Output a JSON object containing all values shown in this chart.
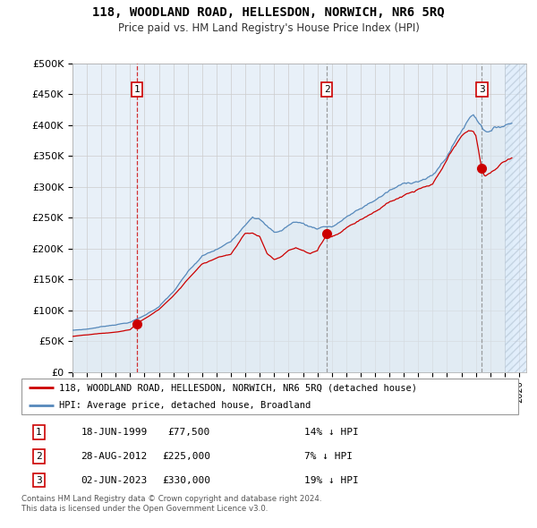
{
  "title": "118, WOODLAND ROAD, HELLESDON, NORWICH, NR6 5RQ",
  "subtitle": "Price paid vs. HM Land Registry's House Price Index (HPI)",
  "legend_label_red": "118, WOODLAND ROAD, HELLESDON, NORWICH, NR6 5RQ (detached house)",
  "legend_label_blue": "HPI: Average price, detached house, Broadland",
  "sale_years": [
    1999.46,
    2012.65,
    2023.42
  ],
  "sale_prices": [
    77500,
    225000,
    330000
  ],
  "sale_labels": [
    "1",
    "2",
    "3"
  ],
  "sale_annotations": [
    {
      "label": "1",
      "date": "18-JUN-1999",
      "price": "£77,500",
      "hpi": "14% ↓ HPI"
    },
    {
      "label": "2",
      "date": "28-AUG-2012",
      "price": "£225,000",
      "hpi": "7% ↓ HPI"
    },
    {
      "label": "3",
      "date": "02-JUN-2023",
      "price": "£330,000",
      "hpi": "19% ↓ HPI"
    }
  ],
  "footer": "Contains HM Land Registry data © Crown copyright and database right 2024.\nThis data is licensed under the Open Government Licence v3.0.",
  "ylim": [
    0,
    500000
  ],
  "ytick_vals": [
    0,
    50000,
    100000,
    150000,
    200000,
    250000,
    300000,
    350000,
    400000,
    450000,
    500000
  ],
  "ytick_labels": [
    "£0",
    "£50K",
    "£100K",
    "£150K",
    "£200K",
    "£250K",
    "£300K",
    "£350K",
    "£400K",
    "£450K",
    "£500K"
  ],
  "xlim": [
    1995.0,
    2026.5
  ],
  "red_color": "#cc0000",
  "blue_color": "#5588bb",
  "blue_fill_color": "#dde8f0",
  "hatch_color": "#aabbcc",
  "background_color": "#e8f0f8",
  "plot_bg_color": "#ffffff",
  "hatch_start": 2025.0
}
